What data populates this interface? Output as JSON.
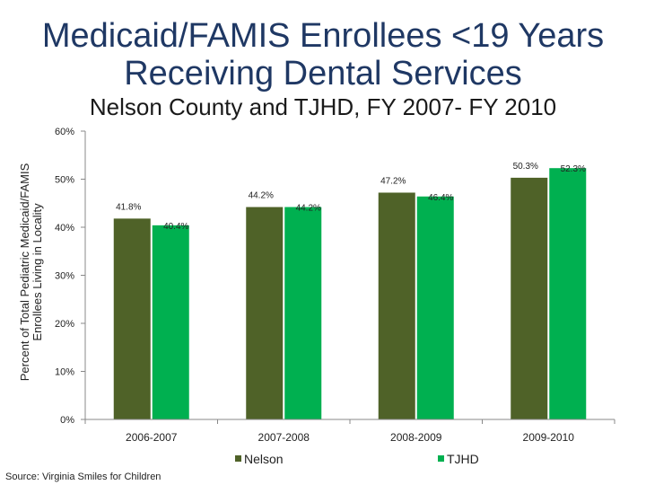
{
  "title_line1": "Medicaid/FAMIS Enrollees <19 Years",
  "title_line2": "Receiving Dental Services",
  "subtitle": "Nelson County and TJHD, FY 2007- FY 2010",
  "source": "Source: Virginia Smiles for Children",
  "colors": {
    "title": "#1f3864",
    "nelson": "#4f6228",
    "tjhd": "#00b050"
  },
  "chart_data": {
    "type": "bar",
    "title": "Medicaid/FAMIS Enrollees <19 Years Receiving Dental Services",
    "subtitle": "Nelson County and TJHD, FY 2007- FY 2010",
    "categories": [
      "2006-2007",
      "2007-2008",
      "2008-2009",
      "2009-2010"
    ],
    "series": [
      {
        "name": "Nelson",
        "values": [
          41.8,
          44.2,
          47.2,
          50.3
        ],
        "labels": [
          "41.8%",
          "44.2%",
          "47.2%",
          "50.3%"
        ]
      },
      {
        "name": "TJHD",
        "values": [
          40.4,
          44.2,
          46.4,
          52.3
        ],
        "labels": [
          "40.4%",
          "44.2%",
          "46.4%",
          "52.3%"
        ]
      }
    ],
    "ylabel_line1": "Percent of Total Pediatric Medicaid/FAMIS",
    "ylabel_line2": "Enrollees Living in Locality",
    "xlabel": "",
    "ylim": [
      0,
      60
    ],
    "yticks": [
      0,
      10,
      20,
      30,
      40,
      50,
      60
    ],
    "ytick_labels": [
      "0%",
      "10%",
      "20%",
      "30%",
      "40%",
      "50%",
      "60%"
    ],
    "grid": false,
    "legend_position": "bottom"
  }
}
